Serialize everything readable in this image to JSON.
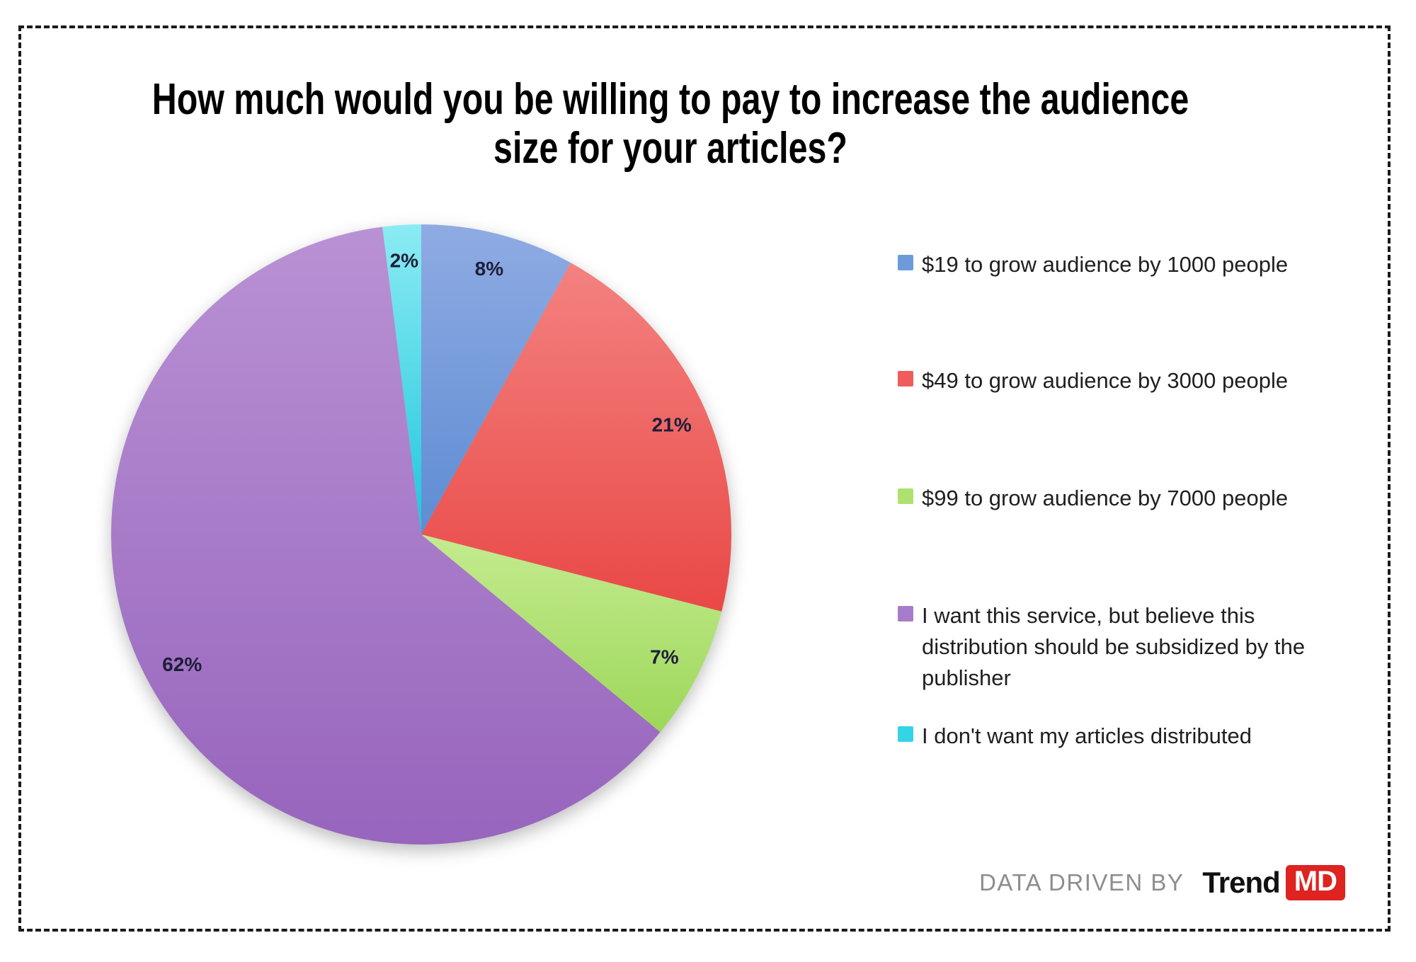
{
  "title": "How much would you be willing to pay to increase the audience\nsize for your articles?",
  "chart_data": {
    "type": "pie",
    "title": "How much would you be willing to pay to increase the audience size for your articles?",
    "unit": "percent",
    "start_angle_deg": 0,
    "direction": "clockwise",
    "legend_position": "right",
    "slices": [
      {
        "label": "$19 to grow audience by 1000 people",
        "value": 8,
        "display": "8%",
        "color": "#6D9BD9",
        "gradient": [
          "#8FABE3",
          "#5E8CD3"
        ]
      },
      {
        "label": "$49 to grow audience by 3000 people",
        "value": 21,
        "display": "21%",
        "color": "#EF5D5B",
        "gradient": [
          "#F38280",
          "#E94846"
        ]
      },
      {
        "label": "$99 to grow audience by 7000 people",
        "value": 7,
        "display": "7%",
        "color": "#AEE170",
        "gradient": [
          "#C4EB8F",
          "#9DD75A"
        ]
      },
      {
        "label": "I want this service, but believe this distribution should be subsidized by the publisher",
        "value": 62,
        "display": "62%",
        "color": "#A77CCB",
        "gradient": [
          "#B991D4",
          "#9765BD"
        ]
      },
      {
        "label": "I don't want my articles distributed",
        "value": 2,
        "display": "2%",
        "color": "#33D4E6",
        "gradient": [
          "#8BEBF3",
          "#1FC6DC"
        ]
      }
    ]
  },
  "legend": {
    "items": [
      {
        "label": "$19 to grow audience by 1000 people"
      },
      {
        "label": "$49 to grow audience by 3000 people"
      },
      {
        "label": "$99 to grow audience by 7000 people"
      },
      {
        "label": "I want this service, but believe this\ndistribution should be subsidized by the\npublisher"
      },
      {
        "label": "I don't want my articles distributed"
      }
    ]
  },
  "footer": {
    "credit_text": "DATA DRIVEN BY",
    "brand_name": "Trend",
    "brand_badge": "MD",
    "brand_badge_color": "#DE2320"
  }
}
